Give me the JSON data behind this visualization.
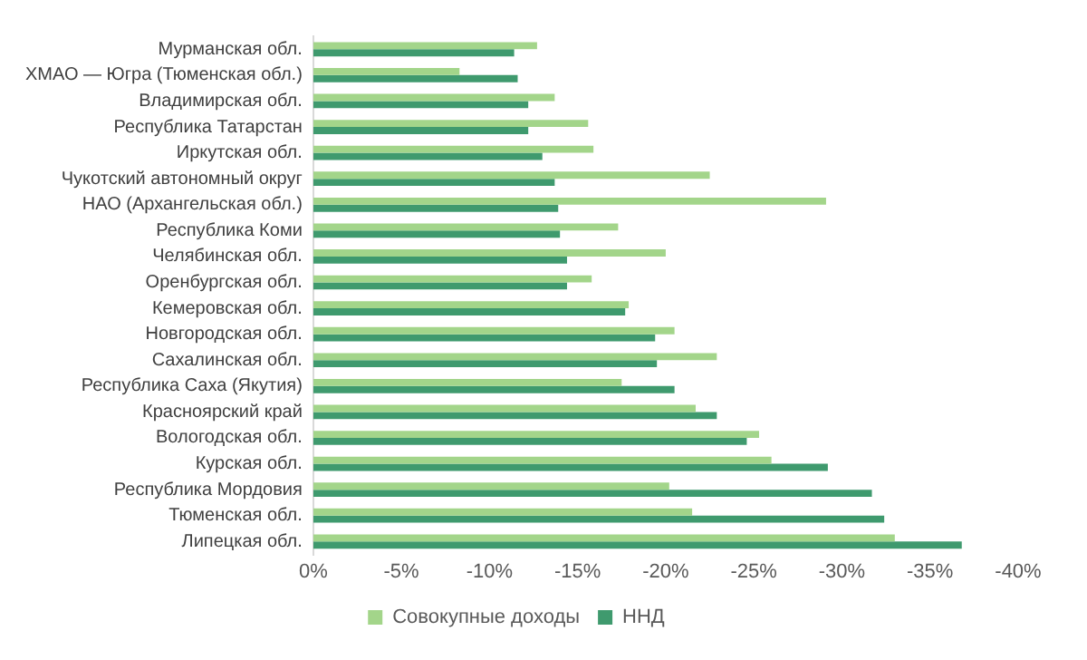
{
  "chart_data": {
    "type": "bar",
    "orientation": "horizontal",
    "categories": [
      "Мурманская обл.",
      "ХМАО — Югра (Тюменская обл.)",
      "Владимирская обл.",
      "Республика Татарстан",
      "Иркутская обл.",
      "Чукотский автономный округ",
      "НАО (Архангельская обл.)",
      "Республика Коми",
      "Челябинская обл.",
      "Оренбургская обл.",
      "Кемеровская обл.",
      "Новгородская обл.",
      "Сахалинская обл.",
      "Республика Саха (Якутия)",
      "Красноярский край",
      "Вологодская обл.",
      "Курская обл.",
      "Республика Мордовия",
      "Тюменская обл.",
      "Липецкая обл."
    ],
    "series": [
      {
        "name": "Совокупные доходы",
        "color": "#a3d58a",
        "values": [
          -12.7,
          -8.3,
          -13.7,
          -15.6,
          -15.9,
          -22.5,
          -29.1,
          -17.3,
          -20.0,
          -15.8,
          -17.9,
          -20.5,
          -22.9,
          -17.5,
          -21.7,
          -25.3,
          -26.0,
          -20.2,
          -21.5,
          -33.0
        ]
      },
      {
        "name": "ННД",
        "color": "#3f9a6e",
        "values": [
          -11.4,
          -11.6,
          -12.2,
          -12.2,
          -13.0,
          -13.7,
          -13.9,
          -14.0,
          -14.4,
          -14.4,
          -17.7,
          -19.4,
          -19.5,
          -20.5,
          -22.9,
          -24.6,
          -29.2,
          -31.7,
          -32.4,
          -36.8
        ]
      }
    ],
    "xlim": [
      0,
      -40
    ],
    "xticks": [
      {
        "value": 0,
        "label": "0%"
      },
      {
        "value": -5,
        "label": "-5%"
      },
      {
        "value": -10,
        "label": "-10%"
      },
      {
        "value": -15,
        "label": "-15%"
      },
      {
        "value": -20,
        "label": "-20%"
      },
      {
        "value": -25,
        "label": "-25%"
      },
      {
        "value": -30,
        "label": "-30%"
      },
      {
        "value": -35,
        "label": "-35%"
      },
      {
        "value": -40,
        "label": "-40%"
      }
    ],
    "legend": "bottom"
  }
}
